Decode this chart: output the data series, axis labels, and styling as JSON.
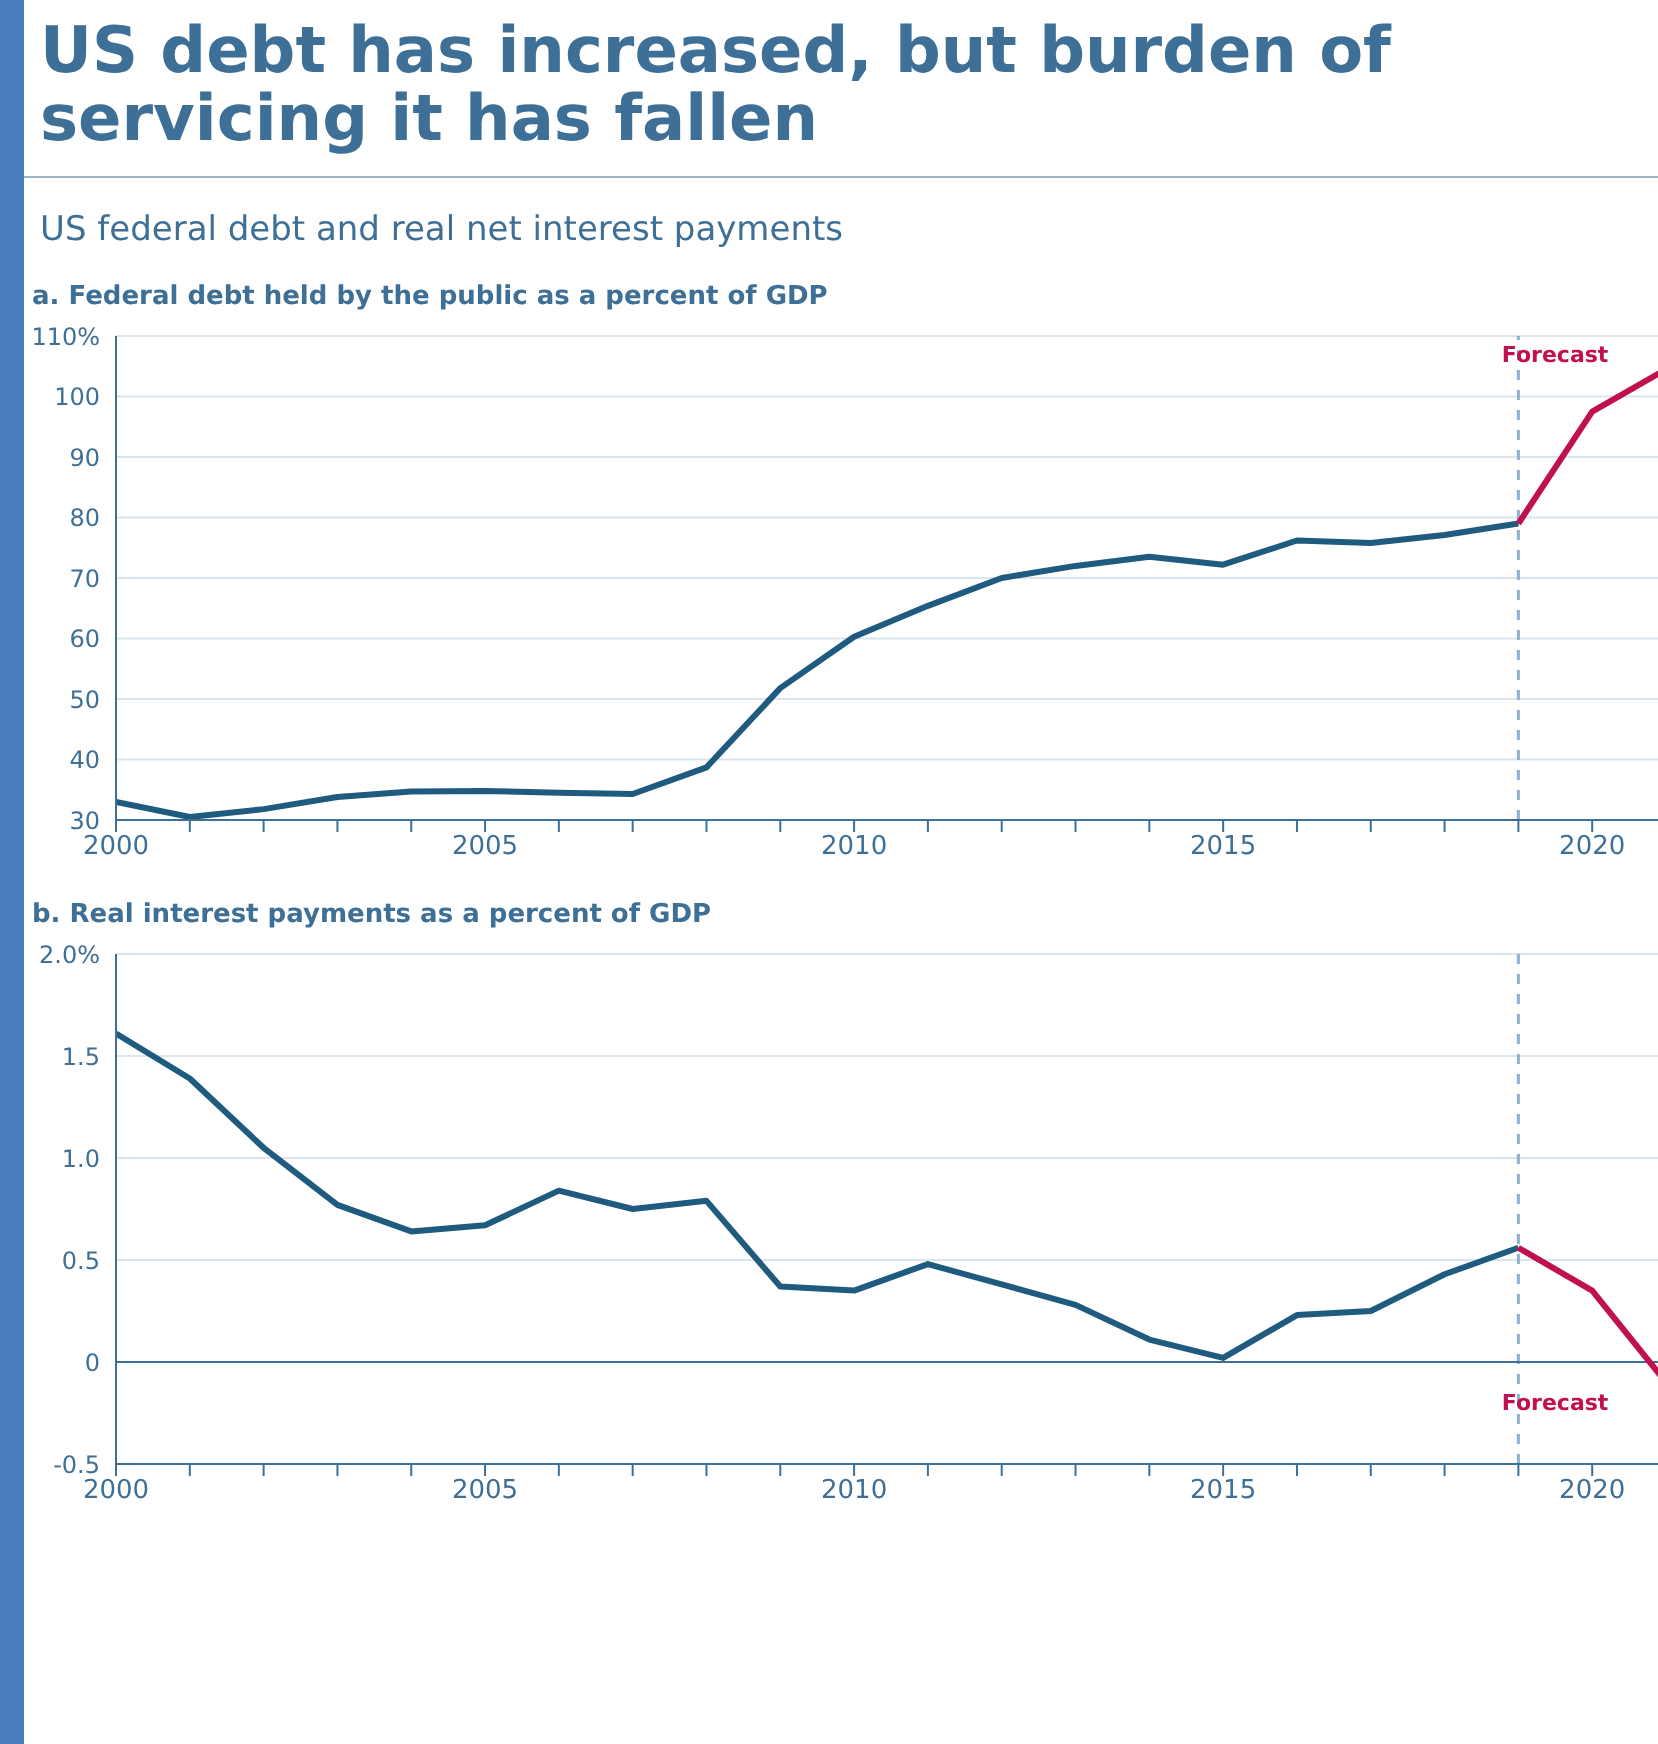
{
  "chart_data": [
    {
      "type": "line",
      "title": "US debt has increased, but burden of servicing it has fallen",
      "subtitle": "US federal debt and real net interest payments",
      "ylabel": "a. Federal debt held by the public as a percent of GDP",
      "series": [
        {
          "color": "#1f5a7f",
          "x": [
            2000,
            2001,
            2002,
            2003,
            2004,
            2005,
            2006,
            2007,
            2008,
            2009,
            2010,
            2011,
            2012,
            2013,
            2014,
            2015,
            2016,
            2017,
            2018,
            2019
          ],
          "values": [
            33,
            30.5,
            31.8,
            33.8,
            34.7,
            34.8,
            34.5,
            34.3,
            38.7,
            51.8,
            60.3,
            65.4,
            70,
            72,
            73.5,
            72.2,
            76.2,
            75.8,
            77.1,
            79
          ]
        },
        {
          "color": "#c0104f",
          "x": [
            2019,
            2020,
            2021
          ],
          "values": [
            79,
            97.5,
            104.5
          ]
        }
      ],
      "xlim": [
        2000,
        2021
      ],
      "xticks": [
        2000,
        {
          "value": 2001,
          "label": null
        },
        {
          "value": 2002,
          "label": null
        },
        {
          "value": 2003,
          "label": null
        },
        {
          "value": 2004,
          "label": null
        },
        2005,
        {
          "value": 2006,
          "label": null
        },
        {
          "value": 2007,
          "label": null
        },
        {
          "value": 2008,
          "label": null
        },
        {
          "value": 2009,
          "label": null
        },
        2010,
        {
          "value": 2011,
          "label": null
        },
        {
          "value": 2012,
          "label": null
        },
        {
          "value": 2013,
          "label": null
        },
        {
          "value": 2014,
          "label": null
        },
        2015,
        {
          "value": 2016,
          "label": null
        },
        {
          "value": 2017,
          "label": null
        },
        {
          "value": 2018,
          "label": null
        },
        {
          "value": 2019,
          "label": null
        },
        2020
      ],
      "ylim": [
        30,
        110
      ],
      "yticks": [
        30,
        40,
        50,
        60,
        70,
        80,
        90,
        100,
        {
          "value": 110,
          "label": "110%"
        }
      ],
      "grid": "y",
      "legend": false,
      "marker": "none",
      "line_style": "solid",
      "ref_lines": [
        {
          "axis": "x",
          "value": 2019,
          "color": "#8fb0cf",
          "line_style": "dashed"
        }
      ],
      "annotations": [
        "Forecast"
      ]
    },
    {
      "type": "line",
      "ylabel": "b. Real interest payments as a percent of GDP",
      "series": [
        {
          "color": "#1f5a7f",
          "x": [
            2000,
            2001,
            2002,
            2003,
            2004,
            2005,
            2006,
            2007,
            2008,
            2009,
            2010,
            2011,
            2012,
            2013,
            2014,
            2015,
            2016,
            2017,
            2018,
            2019
          ],
          "values": [
            1.61,
            1.39,
            1.05,
            0.77,
            0.64,
            0.67,
            0.84,
            0.75,
            0.79,
            0.37,
            0.35,
            0.48,
            0.38,
            0.28,
            0.11,
            0.02,
            0.23,
            0.25,
            0.43,
            0.56
          ]
        },
        {
          "color": "#c0104f",
          "x": [
            2019,
            2020,
            2021
          ],
          "values": [
            0.56,
            0.35,
            -0.1
          ]
        }
      ],
      "xlim": [
        2000,
        2021
      ],
      "xticks": [
        2000,
        {
          "value": 2001,
          "label": null
        },
        {
          "value": 2002,
          "label": null
        },
        {
          "value": 2003,
          "label": null
        },
        {
          "value": 2004,
          "label": null
        },
        2005,
        {
          "value": 2006,
          "label": null
        },
        {
          "value": 2007,
          "label": null
        },
        {
          "value": 2008,
          "label": null
        },
        {
          "value": 2009,
          "label": null
        },
        2010,
        {
          "value": 2011,
          "label": null
        },
        {
          "value": 2012,
          "label": null
        },
        {
          "value": 2013,
          "label": null
        },
        {
          "value": 2014,
          "label": null
        },
        2015,
        {
          "value": 2016,
          "label": null
        },
        {
          "value": 2017,
          "label": null
        },
        {
          "value": 2018,
          "label": null
        },
        {
          "value": 2019,
          "label": null
        },
        2020
      ],
      "ylim": [
        -0.5,
        2
      ],
      "yticks": [
        {
          "value": -0.5,
          "label": "-0.5"
        },
        0,
        {
          "value": 0.5,
          "label": "0.5"
        },
        {
          "value": 1,
          "label": "1.0"
        },
        {
          "value": 1.5,
          "label": "1.5"
        },
        {
          "value": 2,
          "label": "2.0%"
        }
      ],
      "grid": "y",
      "legend": false,
      "marker": "none",
      "line_style": "solid",
      "ref_lines": [
        {
          "axis": "x",
          "value": 2019,
          "color": "#8fb0cf",
          "line_style": "dashed"
        },
        {
          "axis": "y",
          "value": 0,
          "color": "#3e6f96",
          "line_style": "solid"
        }
      ],
      "annotations": [
        "Forecast"
      ]
    }
  ]
}
